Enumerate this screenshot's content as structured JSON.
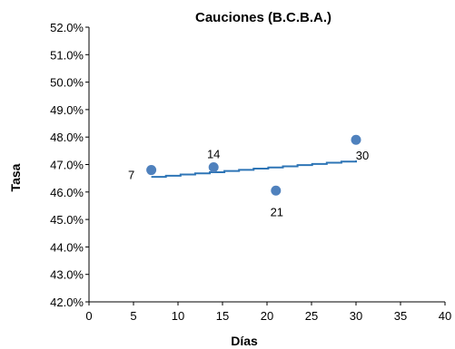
{
  "chart_data": {
    "type": "scatter",
    "title": "Cauciones (B.C.B.A.)",
    "xlabel": "Días",
    "ylabel": "Tasa",
    "xlim": [
      0,
      40
    ],
    "ylim": [
      42,
      52
    ],
    "x_ticks": [
      "0",
      "5",
      "10",
      "15",
      "20",
      "25",
      "30",
      "35",
      "40"
    ],
    "y_ticks": [
      "42.0%",
      "43.0%",
      "44.0%",
      "45.0%",
      "46.0%",
      "47.0%",
      "48.0%",
      "49.0%",
      "50.0%",
      "51.0%",
      "52.0%"
    ],
    "grid": false,
    "series": [
      {
        "type": "scatter",
        "color": "#4f81bd",
        "points": [
          {
            "x": 7,
            "y": 46.8,
            "label": "7"
          },
          {
            "x": 14,
            "y": 46.9,
            "label": "14"
          },
          {
            "x": 21,
            "y": 46.05,
            "label": "21"
          },
          {
            "x": 30,
            "y": 47.9,
            "label": "30"
          }
        ]
      },
      {
        "type": "line",
        "color": "#2e75b6",
        "x": [
          7,
          30
        ],
        "y": [
          46.55,
          47.15
        ]
      }
    ]
  }
}
